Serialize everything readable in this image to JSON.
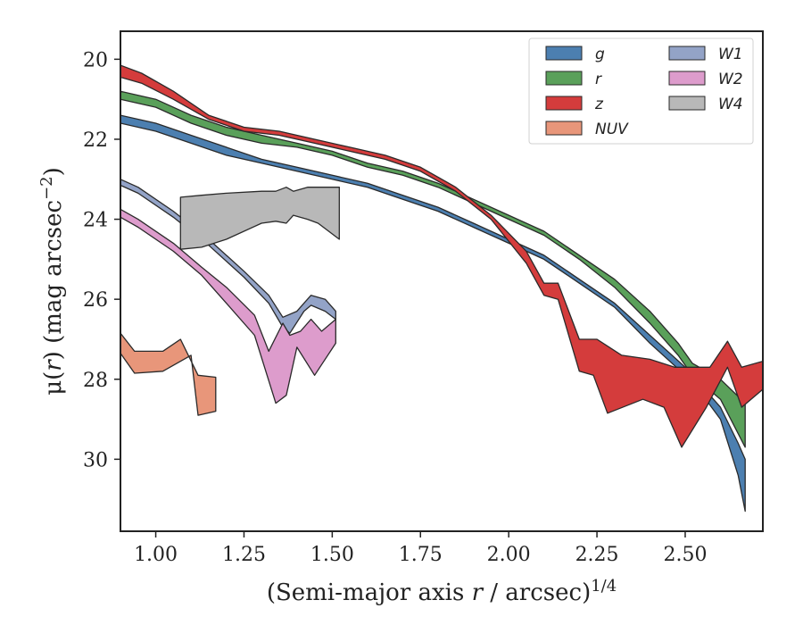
{
  "chart_data": {
    "type": "area",
    "xlabel": "(Semi-major axis r / arcsec)^{1/4}",
    "ylabel": "μ(r) (mag arcsec^{−2})",
    "xlim": [
      0.9,
      2.72
    ],
    "ylim": [
      31.8,
      19.3
    ],
    "y_inverted": true,
    "xticks": [
      "1.00",
      "1.25",
      "1.50",
      "1.75",
      "2.00",
      "2.25",
      "2.50"
    ],
    "xtick_values": [
      1.0,
      1.25,
      1.5,
      1.75,
      2.0,
      2.25,
      2.5
    ],
    "yticks": [
      "20",
      "22",
      "24",
      "26",
      "28",
      "30"
    ],
    "ytick_values": [
      20,
      22,
      24,
      26,
      28,
      30
    ],
    "grid": false,
    "legend": {
      "placement": "top-right",
      "columns": 2
    },
    "series": [
      {
        "name": "g",
        "color": "#4c7fb0",
        "upper": [
          [
            0.9,
            21.4
          ],
          [
            1.0,
            21.6
          ],
          [
            1.1,
            21.9
          ],
          [
            1.2,
            22.2
          ],
          [
            1.3,
            22.5
          ],
          [
            1.4,
            22.7
          ],
          [
            1.5,
            22.9
          ],
          [
            1.6,
            23.1
          ],
          [
            1.7,
            23.4
          ],
          [
            1.8,
            23.7
          ],
          [
            1.9,
            24.1
          ],
          [
            2.0,
            24.5
          ],
          [
            2.1,
            24.9
          ],
          [
            2.2,
            25.5
          ],
          [
            2.3,
            26.1
          ],
          [
            2.4,
            26.9
          ],
          [
            2.5,
            27.7
          ],
          [
            2.55,
            28.2
          ],
          [
            2.6,
            28.7
          ],
          [
            2.65,
            29.6
          ],
          [
            2.67,
            30.0
          ]
        ],
        "lower": [
          [
            0.9,
            21.6
          ],
          [
            1.0,
            21.8
          ],
          [
            1.1,
            22.1
          ],
          [
            1.2,
            22.4
          ],
          [
            1.3,
            22.6
          ],
          [
            1.4,
            22.8
          ],
          [
            1.5,
            23.0
          ],
          [
            1.6,
            23.2
          ],
          [
            1.7,
            23.5
          ],
          [
            1.8,
            23.8
          ],
          [
            1.9,
            24.2
          ],
          [
            2.0,
            24.6
          ],
          [
            2.1,
            25.0
          ],
          [
            2.2,
            25.6
          ],
          [
            2.3,
            26.2
          ],
          [
            2.4,
            27.1
          ],
          [
            2.5,
            27.9
          ],
          [
            2.55,
            28.4
          ],
          [
            2.6,
            29.0
          ],
          [
            2.65,
            30.4
          ],
          [
            2.67,
            31.3
          ]
        ]
      },
      {
        "name": "r",
        "color": "#5aa05a",
        "upper": [
          [
            0.9,
            20.8
          ],
          [
            1.0,
            21.0
          ],
          [
            1.1,
            21.4
          ],
          [
            1.2,
            21.7
          ],
          [
            1.3,
            21.9
          ],
          [
            1.4,
            22.1
          ],
          [
            1.5,
            22.3
          ],
          [
            1.6,
            22.6
          ],
          [
            1.7,
            22.8
          ],
          [
            1.8,
            23.1
          ],
          [
            1.9,
            23.5
          ],
          [
            2.0,
            23.9
          ],
          [
            2.1,
            24.3
          ],
          [
            2.2,
            24.9
          ],
          [
            2.3,
            25.5
          ],
          [
            2.4,
            26.3
          ],
          [
            2.48,
            27.1
          ],
          [
            2.52,
            27.6
          ],
          [
            2.6,
            28.0
          ],
          [
            2.67,
            28.6
          ]
        ],
        "lower": [
          [
            0.9,
            21.0
          ],
          [
            1.0,
            21.2
          ],
          [
            1.1,
            21.6
          ],
          [
            1.2,
            21.9
          ],
          [
            1.3,
            22.1
          ],
          [
            1.4,
            22.2
          ],
          [
            1.5,
            22.4
          ],
          [
            1.6,
            22.7
          ],
          [
            1.7,
            22.9
          ],
          [
            1.8,
            23.2
          ],
          [
            1.9,
            23.6
          ],
          [
            2.0,
            24.0
          ],
          [
            2.1,
            24.4
          ],
          [
            2.2,
            25.0
          ],
          [
            2.3,
            25.7
          ],
          [
            2.4,
            26.6
          ],
          [
            2.48,
            27.4
          ],
          [
            2.52,
            27.9
          ],
          [
            2.6,
            28.5
          ],
          [
            2.67,
            29.7
          ]
        ]
      },
      {
        "name": "z",
        "color": "#d43c3c",
        "upper": [
          [
            0.9,
            20.15
          ],
          [
            0.96,
            20.35
          ],
          [
            1.05,
            20.8
          ],
          [
            1.15,
            21.4
          ],
          [
            1.25,
            21.7
          ],
          [
            1.35,
            21.8
          ],
          [
            1.45,
            22.0
          ],
          [
            1.55,
            22.2
          ],
          [
            1.65,
            22.4
          ],
          [
            1.75,
            22.7
          ],
          [
            1.85,
            23.2
          ],
          [
            1.95,
            23.9
          ],
          [
            2.05,
            24.8
          ],
          [
            2.1,
            25.6
          ],
          [
            2.14,
            25.6
          ],
          [
            2.2,
            27.0
          ],
          [
            2.25,
            27.0
          ],
          [
            2.32,
            27.4
          ],
          [
            2.4,
            27.5
          ],
          [
            2.47,
            27.7
          ],
          [
            2.57,
            27.7
          ],
          [
            2.62,
            27.05
          ],
          [
            2.66,
            27.7
          ],
          [
            2.72,
            27.55
          ]
        ],
        "lower": [
          [
            0.9,
            20.45
          ],
          [
            0.96,
            20.6
          ],
          [
            1.05,
            21.0
          ],
          [
            1.15,
            21.5
          ],
          [
            1.25,
            21.8
          ],
          [
            1.35,
            21.9
          ],
          [
            1.45,
            22.1
          ],
          [
            1.55,
            22.3
          ],
          [
            1.65,
            22.5
          ],
          [
            1.75,
            22.8
          ],
          [
            1.85,
            23.3
          ],
          [
            1.95,
            24.0
          ],
          [
            2.05,
            25.1
          ],
          [
            2.1,
            25.9
          ],
          [
            2.14,
            26.0
          ],
          [
            2.2,
            27.8
          ],
          [
            2.24,
            27.9
          ],
          [
            2.28,
            28.85
          ],
          [
            2.38,
            28.5
          ],
          [
            2.44,
            28.7
          ],
          [
            2.49,
            29.7
          ],
          [
            2.56,
            28.7
          ],
          [
            2.62,
            27.7
          ],
          [
            2.66,
            28.7
          ],
          [
            2.72,
            28.25
          ]
        ]
      },
      {
        "name": "NUV",
        "color": "#e8967a",
        "upper": [
          [
            0.9,
            26.85
          ],
          [
            0.94,
            27.3
          ],
          [
            1.02,
            27.3
          ],
          [
            1.07,
            27.0
          ],
          [
            1.12,
            27.9
          ],
          [
            1.17,
            27.95
          ]
        ],
        "lower": [
          [
            0.9,
            27.35
          ],
          [
            0.94,
            27.85
          ],
          [
            1.02,
            27.8
          ],
          [
            1.1,
            27.4
          ],
          [
            1.12,
            28.9
          ],
          [
            1.17,
            28.8
          ]
        ]
      },
      {
        "name": "W1",
        "color": "#93a3c7",
        "upper": [
          [
            0.9,
            23.0
          ],
          [
            0.95,
            23.2
          ],
          [
            1.05,
            23.8
          ],
          [
            1.15,
            24.5
          ],
          [
            1.25,
            25.3
          ],
          [
            1.32,
            25.9
          ],
          [
            1.36,
            26.45
          ],
          [
            1.4,
            26.3
          ],
          [
            1.42,
            26.1
          ],
          [
            1.44,
            25.9
          ],
          [
            1.48,
            26.0
          ],
          [
            1.51,
            26.3
          ]
        ],
        "lower": [
          [
            0.9,
            23.15
          ],
          [
            0.95,
            23.35
          ],
          [
            1.05,
            23.95
          ],
          [
            1.15,
            24.65
          ],
          [
            1.25,
            25.45
          ],
          [
            1.32,
            26.1
          ],
          [
            1.36,
            26.7
          ],
          [
            1.38,
            26.85
          ],
          [
            1.42,
            26.3
          ],
          [
            1.44,
            26.15
          ],
          [
            1.48,
            26.3
          ],
          [
            1.51,
            26.5
          ]
        ]
      },
      {
        "name": "W2",
        "color": "#dd9ccc",
        "upper": [
          [
            0.9,
            23.75
          ],
          [
            0.95,
            24.0
          ],
          [
            1.05,
            24.6
          ],
          [
            1.13,
            25.2
          ],
          [
            1.2,
            25.7
          ],
          [
            1.28,
            26.4
          ],
          [
            1.32,
            27.3
          ],
          [
            1.36,
            26.6
          ],
          [
            1.38,
            26.9
          ],
          [
            1.41,
            26.8
          ],
          [
            1.44,
            26.5
          ],
          [
            1.47,
            26.8
          ],
          [
            1.51,
            26.5
          ]
        ],
        "lower": [
          [
            0.9,
            23.95
          ],
          [
            0.95,
            24.2
          ],
          [
            1.05,
            24.8
          ],
          [
            1.13,
            25.4
          ],
          [
            1.2,
            26.1
          ],
          [
            1.28,
            26.9
          ],
          [
            1.34,
            28.6
          ],
          [
            1.37,
            28.4
          ],
          [
            1.4,
            27.2
          ],
          [
            1.45,
            27.9
          ],
          [
            1.51,
            27.1
          ]
        ]
      },
      {
        "name": "W4",
        "color": "#b8b8b8",
        "upper": [
          [
            1.07,
            23.45
          ],
          [
            1.13,
            23.4
          ],
          [
            1.2,
            23.35
          ],
          [
            1.3,
            23.3
          ],
          [
            1.34,
            23.3
          ],
          [
            1.37,
            23.2
          ],
          [
            1.39,
            23.3
          ],
          [
            1.43,
            23.2
          ],
          [
            1.46,
            23.2
          ],
          [
            1.52,
            23.2
          ]
        ],
        "lower": [
          [
            1.07,
            24.75
          ],
          [
            1.13,
            24.7
          ],
          [
            1.2,
            24.5
          ],
          [
            1.3,
            24.1
          ],
          [
            1.34,
            24.05
          ],
          [
            1.37,
            24.1
          ],
          [
            1.39,
            23.9
          ],
          [
            1.43,
            24.0
          ],
          [
            1.46,
            24.1
          ],
          [
            1.52,
            24.5
          ]
        ]
      }
    ]
  }
}
